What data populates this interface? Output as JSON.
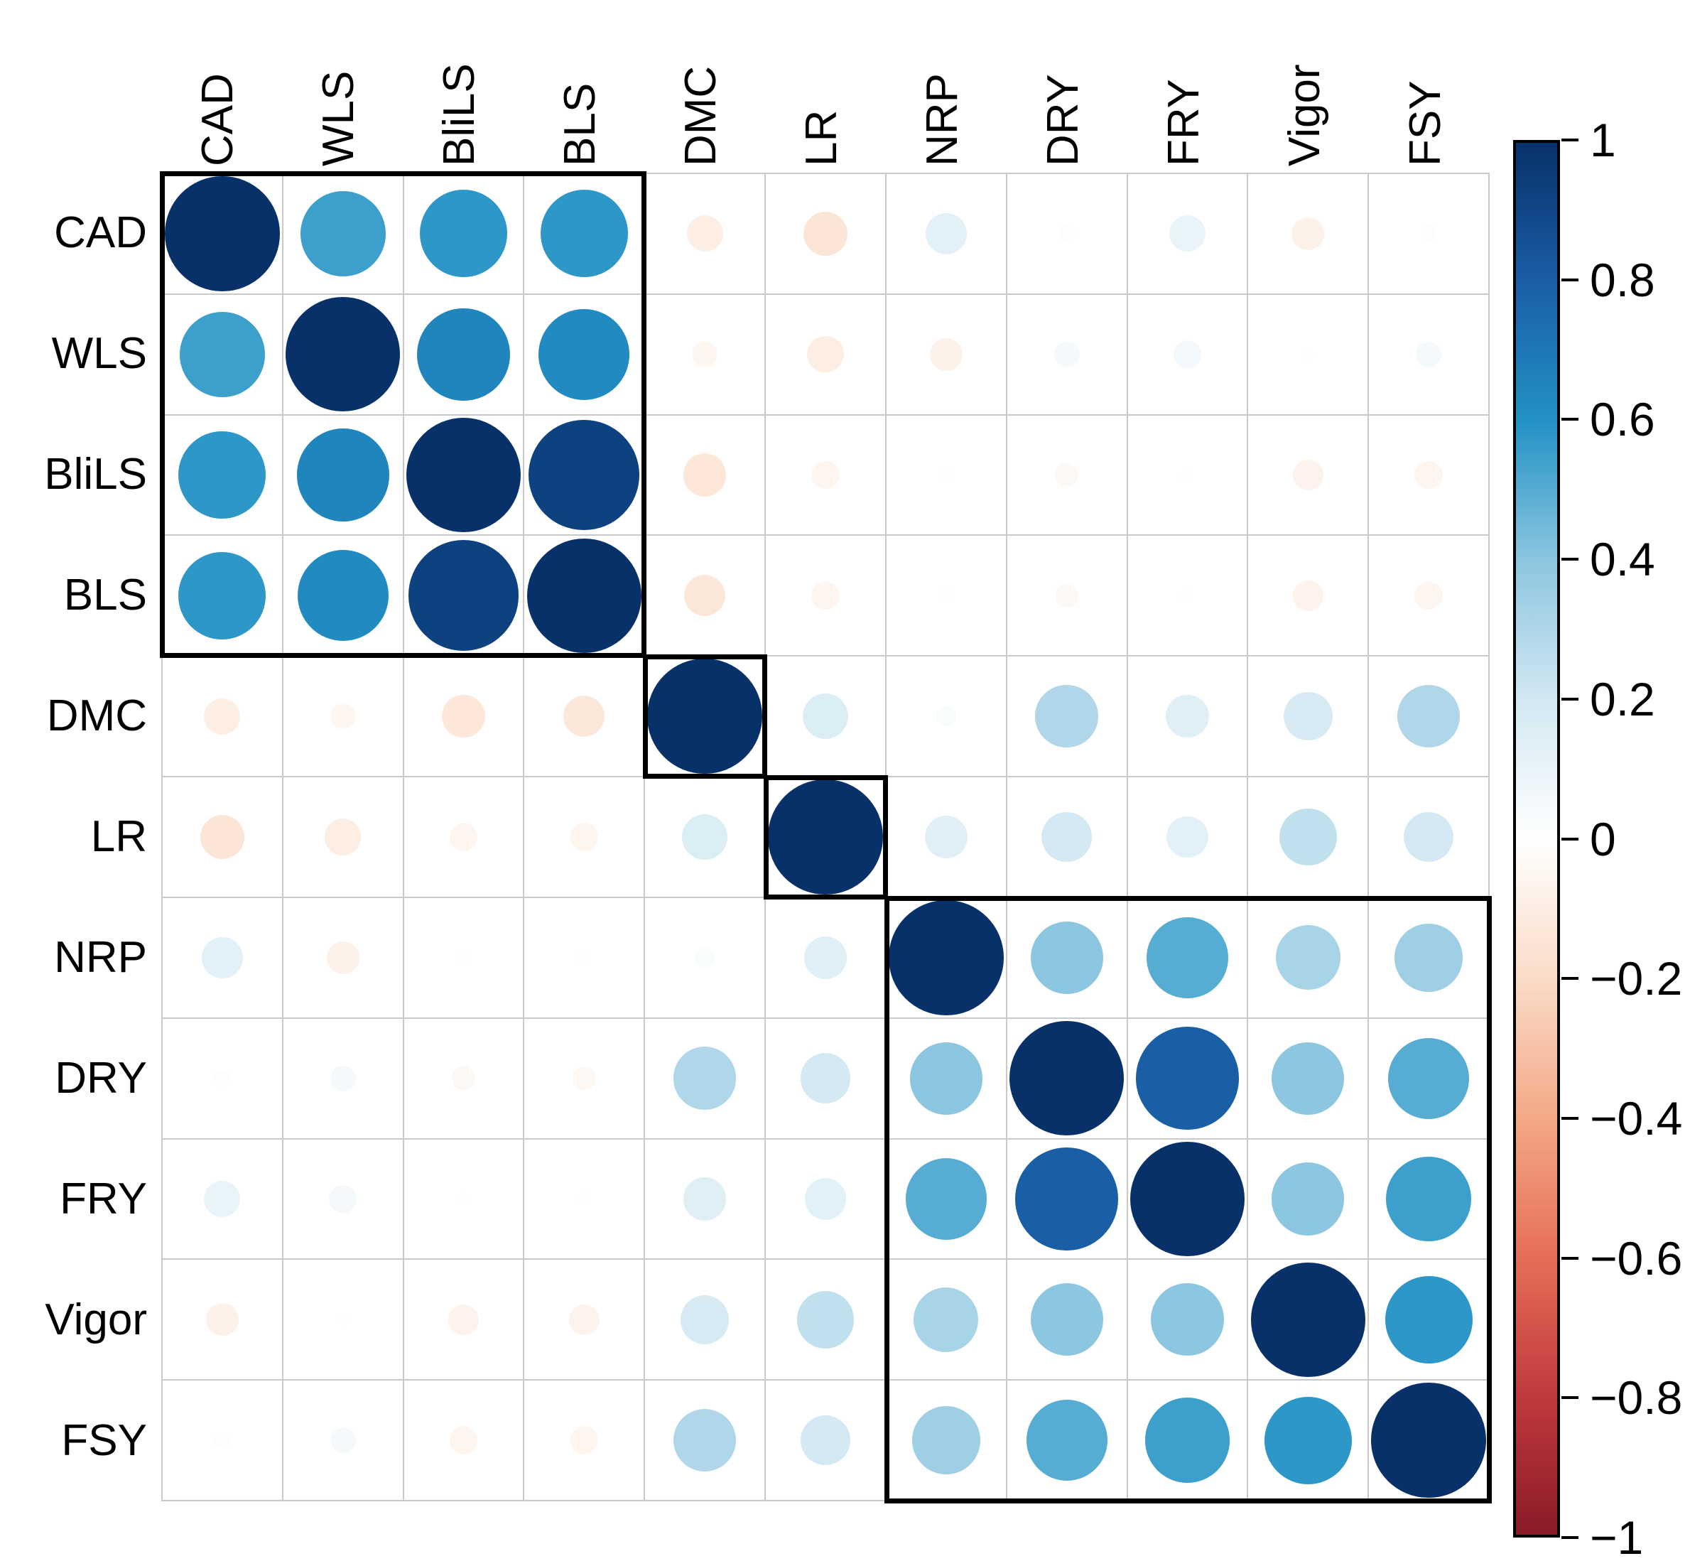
{
  "figure": {
    "kind": "correlation matrix bubble plot",
    "background": "#ffffff",
    "grid_line_color": "#c9c9c9",
    "cluster_box_color": "#000000"
  },
  "chart_data": {
    "type": "heatmap",
    "subtype": "correlation-bubble-matrix",
    "title": "",
    "variables": [
      "CAD",
      "WLS",
      "BliLS",
      "BLS",
      "DMC",
      "LR",
      "NRP",
      "DRY",
      "FRY",
      "Vigor",
      "FSY"
    ],
    "matrix": [
      [
        1.0,
        0.55,
        0.58,
        0.58,
        -0.1,
        -0.15,
        0.13,
        0.02,
        0.1,
        -0.08,
        0.02
      ],
      [
        0.55,
        1.0,
        0.65,
        0.63,
        -0.05,
        -0.1,
        -0.08,
        0.05,
        0.06,
        0.01,
        0.05
      ],
      [
        0.58,
        0.65,
        1.0,
        0.93,
        -0.14,
        -0.06,
        0.02,
        -0.04,
        0.01,
        -0.07,
        -0.06
      ],
      [
        0.58,
        0.63,
        0.93,
        1.0,
        -0.13,
        -0.06,
        0.01,
        -0.04,
        0.01,
        -0.07,
        -0.06
      ],
      [
        -0.1,
        -0.05,
        -0.14,
        -0.13,
        1.0,
        0.16,
        0.03,
        0.3,
        0.14,
        0.18,
        0.3
      ],
      [
        -0.15,
        -0.1,
        -0.06,
        -0.06,
        0.16,
        1.0,
        0.14,
        0.19,
        0.13,
        0.25,
        0.19
      ],
      [
        0.13,
        -0.08,
        0.02,
        0.01,
        0.03,
        0.14,
        1.0,
        0.4,
        0.5,
        0.32,
        0.35
      ],
      [
        0.02,
        0.05,
        -0.04,
        -0.04,
        0.3,
        0.19,
        0.4,
        1.0,
        0.8,
        0.4,
        0.5
      ],
      [
        0.1,
        0.06,
        0.01,
        0.01,
        0.14,
        0.13,
        0.5,
        0.8,
        1.0,
        0.4,
        0.55
      ],
      [
        -0.08,
        0.01,
        -0.07,
        -0.07,
        0.18,
        0.25,
        0.32,
        0.4,
        0.4,
        1.0,
        0.58
      ],
      [
        0.02,
        0.05,
        -0.06,
        -0.06,
        0.3,
        0.19,
        0.35,
        0.5,
        0.55,
        0.58,
        1.0
      ]
    ],
    "cluster_boxes": [
      {
        "start": 0,
        "end": 3
      },
      {
        "start": 4,
        "end": 4
      },
      {
        "start": 5,
        "end": 5
      },
      {
        "start": 6,
        "end": 10
      }
    ],
    "colorbar": {
      "min": -1,
      "max": 1,
      "position": "right",
      "tick_values": [
        1,
        0.8,
        0.6,
        0.4,
        0.2,
        0,
        -0.2,
        -0.4,
        -0.6,
        -0.8,
        -1
      ],
      "tick_labels": [
        "1",
        "0.8",
        "0.6",
        "0.4",
        "0.2",
        "0",
        "−0.2",
        "−0.4",
        "−0.6",
        "−0.8",
        "−1"
      ]
    },
    "colormap_stops": [
      {
        "v": 1.0,
        "c": "#08316a"
      },
      {
        "v": 0.8,
        "c": "#1a5ea6"
      },
      {
        "v": 0.6,
        "c": "#2292c5"
      },
      {
        "v": 0.4,
        "c": "#8cc6e0"
      },
      {
        "v": 0.2,
        "c": "#d2e8f2"
      },
      {
        "v": 0.0,
        "c": "#ffffff"
      },
      {
        "v": -0.2,
        "c": "#fadcc8"
      },
      {
        "v": -0.4,
        "c": "#f4a987"
      },
      {
        "v": -0.6,
        "c": "#e66f58"
      },
      {
        "v": -0.8,
        "c": "#c03a3c"
      },
      {
        "v": -1.0,
        "c": "#8a1a28"
      }
    ]
  }
}
